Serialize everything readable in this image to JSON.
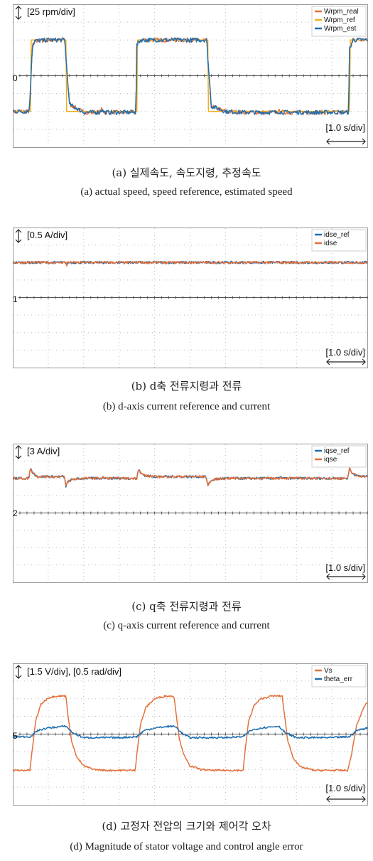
{
  "colors": {
    "orange": "#E4703A",
    "yellow": "#F2AE1C",
    "blue": "#1F6EB0",
    "grid": "#b8b8b8",
    "frame": "#999999",
    "zero": "#555555"
  },
  "charts": [
    {
      "id": "a",
      "scale_label": "[25 rpm/div]",
      "time_label": "[1.0 s/div]",
      "marker_label": "0",
      "caption_ko": "(a)  실제속도, 속도지령, 추정속도",
      "caption_en": "(a)  actual speed, speed reference, estimated speed"
    },
    {
      "id": "b",
      "scale_label": "[0.5 A/div]",
      "time_label": "[1.0 s/div]",
      "marker_label": "1",
      "caption_ko": "(b)  d축  전류지령과  전류",
      "caption_en": "(b)  d-axis  current  reference  and  current"
    },
    {
      "id": "c",
      "scale_label": "[3 A/div]",
      "time_label": "[1.0 s/div]",
      "marker_label": "2",
      "caption_ko": "(c)  q축  전류지령과  전류",
      "caption_en": "(c)  q-axis  current  reference  and  current"
    },
    {
      "id": "d",
      "scale_label": "[1.5 V/div], [0.5 rad/div]",
      "time_label": "[1.0 s/div]",
      "marker_label": "5",
      "caption_ko": "(d)  고정자  전압의  크기와  제어각  오차",
      "caption_en": "(d)  Magnitude  of  stator  voltage  and  control  angle  error"
    }
  ],
  "chart_data": [
    {
      "type": "line",
      "x_unit": "s",
      "x_range": [
        0,
        10
      ],
      "y_unit": "div",
      "y_range": [
        -4,
        4
      ],
      "grid": true,
      "legend_position": "top-right",
      "series": [
        {
          "name": "Wrpm_real",
          "color": "#E4703A",
          "x": [
            0,
            0.45,
            0.48,
            0.55,
            0.62,
            1.0,
            1.47,
            1.5,
            1.6,
            2.0,
            2.45,
            2.5,
            2.6,
            3.0,
            3.47,
            3.5,
            3.6,
            4.0,
            4.5,
            5.0,
            5.47,
            5.5,
            5.6,
            6.0,
            6.5,
            7.0,
            7.45,
            7.5,
            7.6,
            8.0,
            8.5,
            9.0,
            9.47,
            9.5,
            9.6,
            10.0
          ],
          "y": [
            -2.0,
            -2.0,
            -1.5,
            1.6,
            1.95,
            2.0,
            2.0,
            1.0,
            -1.6,
            -2.05,
            -2.05,
            -1.9,
            -2.05,
            -2.05,
            -2.05,
            1.7,
            2.0,
            2.0,
            2.0,
            2.0,
            2.0,
            1.0,
            -1.7,
            -2.0,
            -2.05,
            -2.05,
            -2.05,
            -2.0,
            -2.05,
            -2.05,
            -2.05,
            -2.05,
            -2.05,
            1.5,
            2.0,
            2.0
          ]
        },
        {
          "name": "Wrpm_ref",
          "color": "#F2AE1C",
          "x": [
            0,
            0.5,
            0.5,
            1.5,
            1.5,
            2.5,
            2.5,
            3.5,
            3.5,
            5.5,
            5.5,
            7.5,
            7.5,
            9.5,
            9.5,
            10.0
          ],
          "y": [
            -2.0,
            -2.0,
            2.0,
            2.0,
            -2.0,
            -2.0,
            -2.0,
            -2.0,
            2.0,
            2.0,
            -2.0,
            -2.0,
            -2.0,
            -2.0,
            2.0,
            2.0
          ]
        },
        {
          "name": "Wrpm_est",
          "color": "#1F6EB0",
          "x": [
            0,
            0.45,
            0.48,
            0.55,
            0.62,
            1.0,
            1.47,
            1.5,
            1.6,
            2.0,
            2.45,
            2.5,
            2.6,
            3.0,
            3.47,
            3.5,
            3.6,
            4.0,
            4.5,
            5.0,
            5.47,
            5.5,
            5.6,
            6.0,
            6.5,
            7.0,
            7.45,
            7.5,
            7.6,
            8.0,
            8.5,
            9.0,
            9.47,
            9.5,
            9.6,
            10.0
          ],
          "y": [
            -2.0,
            -2.0,
            -1.5,
            1.6,
            1.95,
            2.0,
            2.0,
            1.0,
            -1.6,
            -2.05,
            -2.05,
            -1.9,
            -2.05,
            -2.05,
            -2.05,
            1.7,
            2.0,
            2.0,
            2.0,
            2.0,
            2.0,
            1.0,
            -1.7,
            -2.0,
            -2.05,
            -2.05,
            -2.05,
            -2.0,
            -2.05,
            -2.05,
            -2.05,
            -2.05,
            -2.05,
            1.5,
            2.0,
            2.0
          ]
        }
      ]
    },
    {
      "type": "line",
      "x_unit": "s",
      "x_range": [
        0,
        10
      ],
      "y_unit": "div",
      "y_range": [
        -4,
        4
      ],
      "grid": true,
      "legend_position": "top-right",
      "series": [
        {
          "name": "idse_ref",
          "color": "#1F6EB0",
          "x": [
            0,
            1.5,
            1.52,
            1.56,
            1.6,
            5.0,
            10.0
          ],
          "y": [
            2.0,
            2.0,
            1.9,
            2.0,
            2.0,
            2.0,
            2.0
          ]
        },
        {
          "name": "idse",
          "color": "#E4703A",
          "x": [
            0,
            1.5,
            1.52,
            1.56,
            1.6,
            5.0,
            10.0
          ],
          "y": [
            2.0,
            2.0,
            1.85,
            2.0,
            2.0,
            2.0,
            2.0
          ]
        }
      ]
    },
    {
      "type": "line",
      "x_unit": "s",
      "x_range": [
        0,
        10
      ],
      "y_unit": "div",
      "y_range": [
        -4,
        4
      ],
      "grid": true,
      "legend_position": "top-right",
      "series": [
        {
          "name": "iqse_ref",
          "color": "#1F6EB0",
          "x": [
            0,
            0.45,
            0.5,
            0.55,
            0.7,
            1.0,
            1.45,
            1.5,
            1.55,
            1.7,
            2.0,
            2.45,
            2.5,
            2.55,
            2.7,
            3.0,
            3.5,
            3.55,
            3.6,
            3.75,
            4.0,
            5.0,
            5.45,
            5.5,
            5.55,
            5.7,
            6.0,
            7.0,
            7.45,
            7.5,
            7.55,
            7.7,
            8.0,
            9.0,
            9.45,
            9.5,
            9.55,
            9.7,
            10.0
          ],
          "y": [
            2.0,
            2.0,
            2.6,
            2.35,
            2.1,
            2.1,
            2.1,
            1.55,
            1.8,
            1.95,
            2.0,
            2.0,
            2.0,
            2.05,
            2.0,
            2.0,
            2.0,
            2.6,
            2.3,
            2.15,
            2.1,
            2.1,
            2.1,
            1.55,
            1.8,
            1.95,
            2.0,
            2.0,
            2.0,
            2.0,
            2.05,
            2.0,
            2.0,
            2.0,
            2.0,
            2.6,
            2.35,
            2.15,
            2.1
          ]
        },
        {
          "name": "iqse",
          "color": "#E4703A",
          "x": [
            0,
            0.45,
            0.5,
            0.55,
            0.7,
            1.0,
            1.45,
            1.5,
            1.55,
            1.7,
            2.0,
            2.45,
            2.5,
            2.55,
            2.7,
            3.0,
            3.5,
            3.55,
            3.6,
            3.75,
            4.0,
            5.0,
            5.45,
            5.5,
            5.55,
            5.7,
            6.0,
            7.0,
            7.45,
            7.5,
            7.55,
            7.7,
            8.0,
            9.0,
            9.45,
            9.5,
            9.55,
            9.7,
            10.0
          ],
          "y": [
            2.0,
            2.0,
            2.6,
            2.35,
            2.1,
            2.1,
            2.1,
            1.55,
            1.8,
            1.95,
            2.0,
            2.0,
            2.0,
            2.05,
            2.0,
            2.0,
            2.0,
            2.6,
            2.3,
            2.15,
            2.1,
            2.1,
            2.1,
            1.55,
            1.8,
            1.95,
            2.0,
            2.0,
            2.0,
            2.0,
            2.05,
            2.0,
            2.0,
            2.0,
            2.0,
            2.6,
            2.35,
            2.15,
            2.1
          ]
        }
      ]
    },
    {
      "type": "line",
      "x_unit": "s",
      "x_range": [
        0,
        10
      ],
      "y_unit": "div",
      "y_range": [
        -4,
        4
      ],
      "grid": true,
      "legend_position": "top-right",
      "series": [
        {
          "name": "Vs",
          "color": "#E4703A",
          "x": [
            0,
            0.48,
            0.55,
            0.65,
            0.8,
            1.0,
            1.2,
            1.5,
            1.55,
            1.65,
            1.8,
            2.0,
            2.3,
            2.6,
            3.0,
            3.45,
            3.5,
            3.6,
            3.75,
            4.0,
            4.3,
            4.55,
            4.6,
            4.7,
            4.85,
            5.0,
            5.3,
            5.6,
            6.0,
            6.5,
            6.55,
            6.65,
            6.8,
            7.0,
            7.3,
            7.6,
            7.65,
            7.75,
            7.9,
            8.1,
            8.5,
            9.0,
            9.45,
            9.55,
            9.7,
            9.9,
            10.0
          ],
          "y": [
            -2.05,
            -2.05,
            -0.9,
            0.8,
            1.7,
            2.05,
            2.15,
            2.15,
            1.2,
            -0.3,
            -1.3,
            -1.8,
            -2.0,
            -2.05,
            -2.05,
            -2.05,
            -1.1,
            0.5,
            1.5,
            2.0,
            2.15,
            2.15,
            1.3,
            -0.3,
            -1.3,
            -1.8,
            -2.0,
            -2.05,
            -2.05,
            -2.05,
            -1.0,
            0.7,
            1.6,
            2.0,
            2.15,
            2.15,
            1.3,
            -0.3,
            -1.3,
            -1.85,
            -2.05,
            -2.05,
            -2.05,
            -1.2,
            0.5,
            1.5,
            1.8
          ]
        },
        {
          "name": "theta_err",
          "color": "#1F6EB0",
          "x": [
            0,
            0.5,
            0.7,
            1.0,
            1.5,
            1.7,
            2.0,
            2.5,
            3.0,
            3.5,
            3.7,
            4.0,
            4.5,
            4.6,
            4.8,
            5.0,
            5.5,
            6.0,
            6.5,
            6.7,
            7.0,
            7.5,
            7.7,
            8.0,
            8.5,
            9.0,
            9.5,
            9.7,
            10.0
          ],
          "y": [
            -0.15,
            -0.15,
            0.2,
            0.35,
            0.45,
            0.05,
            -0.2,
            -0.2,
            -0.2,
            -0.15,
            0.2,
            0.35,
            0.45,
            0.4,
            0.0,
            -0.2,
            -0.2,
            -0.2,
            -0.15,
            0.2,
            0.35,
            0.45,
            0.05,
            -0.2,
            -0.2,
            -0.2,
            -0.15,
            0.2,
            0.35
          ]
        }
      ]
    }
  ]
}
